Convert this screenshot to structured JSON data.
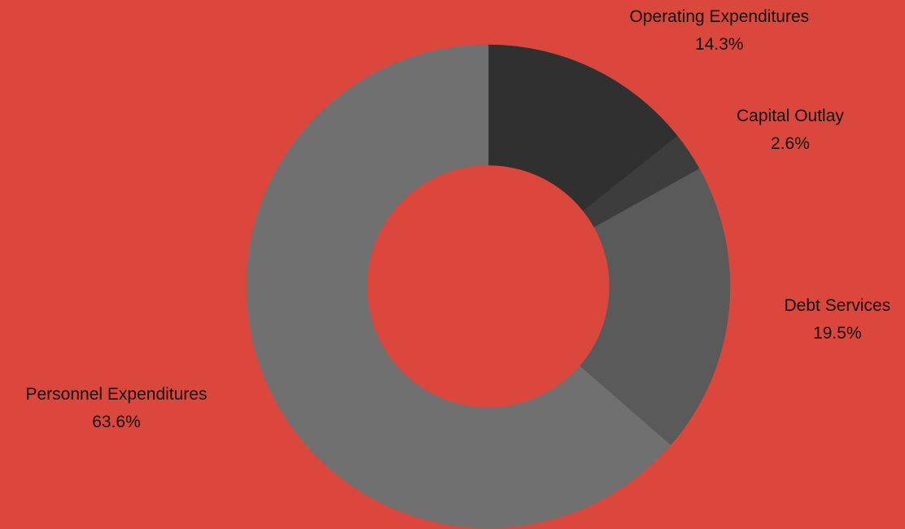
{
  "chart_data": {
    "type": "pie",
    "style": "donut",
    "background_color": "#DC473D",
    "slices": [
      {
        "label": "Operating Expenditures",
        "value": 14.3,
        "display": "14.3%",
        "color": "#303030"
      },
      {
        "label": "Capital Outlay",
        "value": 2.6,
        "display": "2.6%",
        "color": "#3D3D3D"
      },
      {
        "label": "Debt Services",
        "value": 19.5,
        "display": "19.5%",
        "color": "#5A5A5A"
      },
      {
        "label": "Personnel Expenditures",
        "value": 63.6,
        "display": "63.6%",
        "color": "#707070"
      }
    ]
  }
}
